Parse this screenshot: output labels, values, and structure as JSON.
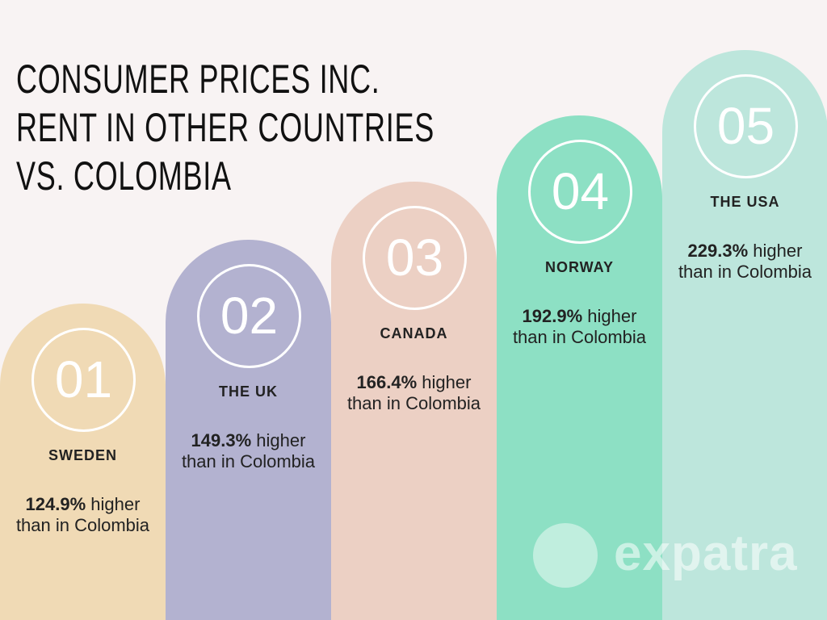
{
  "title": "CONSUMER PRICES INC. RENT IN OTHER COUNTRIES VS. COLOMBIA",
  "items": [
    {
      "number": "01",
      "country": "SWEDEN",
      "value": "124.9%",
      "text": "higher than in Colombia"
    },
    {
      "number": "02",
      "country": "THE UK",
      "value": "149.3%",
      "text": "higher than in Colombia"
    },
    {
      "number": "03",
      "country": "CANADA",
      "value": "166.4%",
      "text": "higher than in Colombia"
    },
    {
      "number": "04",
      "country": "NORWAY",
      "value": "192.9%",
      "text": "higher than in Colombia"
    },
    {
      "number": "05",
      "country": "THE USA",
      "value": "229.3%",
      "text": "higher than in Colombia"
    }
  ],
  "watermark": "expatra"
}
